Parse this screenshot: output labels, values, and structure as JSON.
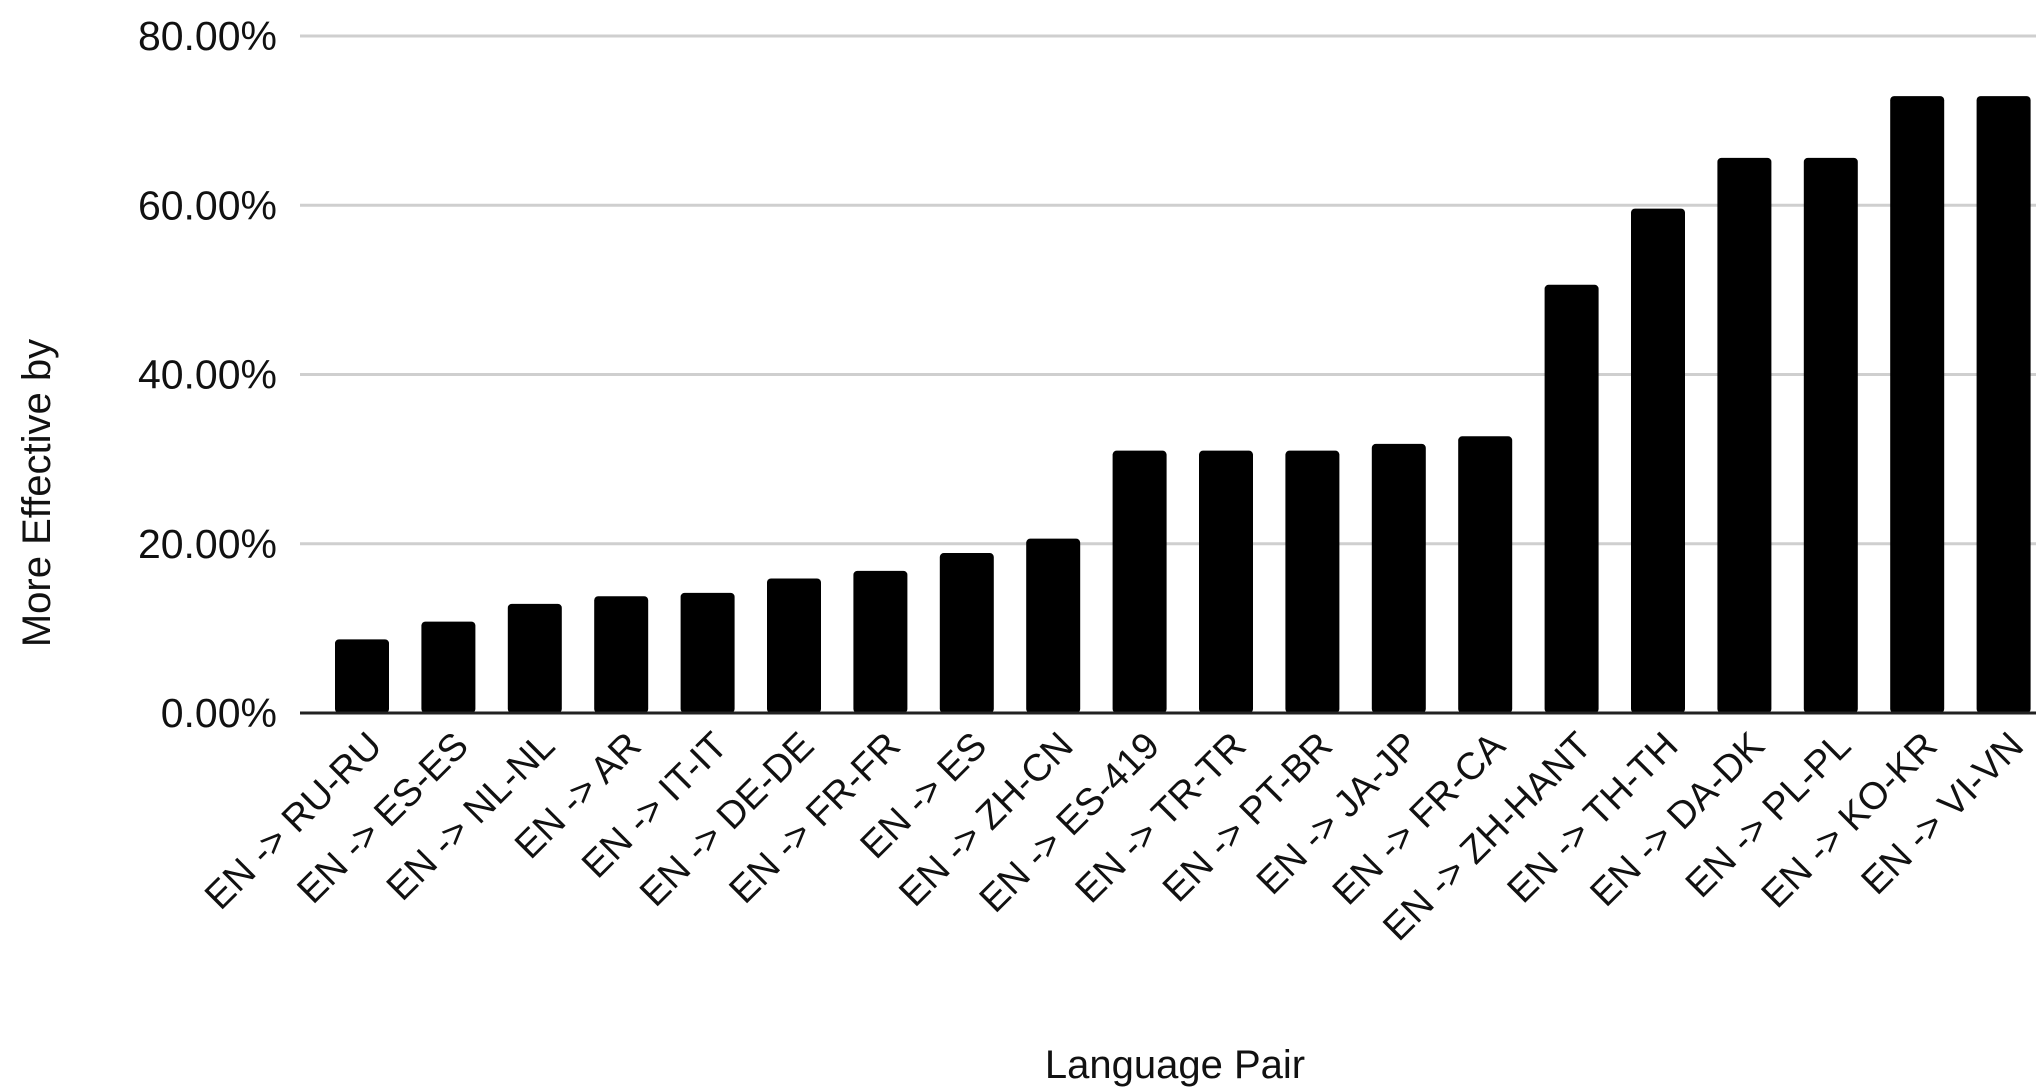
{
  "chart_data": {
    "type": "bar",
    "title": "",
    "xlabel": "Language Pair",
    "ylabel": "More Effective by",
    "ylim": [
      0,
      0.8
    ],
    "y_ticks": [
      0,
      0.2,
      0.4,
      0.6,
      0.8
    ],
    "y_tick_labels": [
      "0.00%",
      "20.00%",
      "40.00%",
      "60.00%",
      "80.00%"
    ],
    "grid": true,
    "legend": "none",
    "bar_color": "#000000",
    "categories": [
      "EN -> RU-RU",
      "EN -> ES-ES",
      "EN -> NL-NL",
      "EN -> AR",
      "EN -> IT-IT",
      "EN -> DE-DE",
      "EN -> FR-FR",
      "EN -> ES",
      "EN -> ZH-CN",
      "EN -> ES-419",
      "EN -> TR-TR",
      "EN -> PT-BR",
      "EN -> JA-JP",
      "EN -> FR-CA",
      "EN -> ZH-HANT",
      "EN -> TH-TH",
      "EN -> DA-DK",
      "EN -> PL-PL",
      "EN -> KO-KR",
      "EN -> VI-VN"
    ],
    "values": [
      0.087,
      0.108,
      0.129,
      0.138,
      0.142,
      0.159,
      0.168,
      0.189,
      0.206,
      0.31,
      0.31,
      0.31,
      0.318,
      0.327,
      0.506,
      0.596,
      0.656,
      0.656,
      0.729,
      0.729
    ]
  }
}
